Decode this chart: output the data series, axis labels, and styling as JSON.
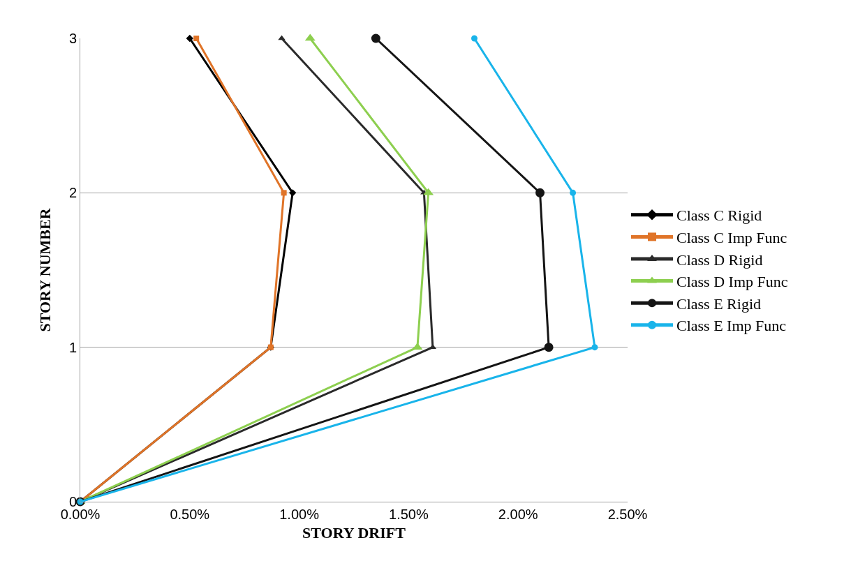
{
  "chart_data": {
    "type": "line",
    "xlabel": "STORY DRIFT",
    "ylabel": "STORY NUMBER",
    "xlim": [
      0,
      2.5
    ],
    "xticks": [
      {
        "value": 0,
        "label": "0.00%"
      },
      {
        "value": 0.5,
        "label": "0.50%"
      },
      {
        "value": 1,
        "label": "1.00%"
      },
      {
        "value": 1.5,
        "label": "1.50%"
      },
      {
        "value": 2,
        "label": "2.00%"
      },
      {
        "value": 2.5,
        "label": "2.50%"
      }
    ],
    "ylim": [
      0,
      3
    ],
    "yticks": [
      0,
      1,
      2,
      3
    ],
    "grid": "y",
    "legend": "right",
    "line_style": "solid",
    "series": [
      {
        "name": "Class C Rigid",
        "color": "#000000",
        "marker": "diamond",
        "x": [
          0,
          0.87,
          0.97,
          0.5
        ],
        "values": [
          0,
          1,
          2,
          3
        ]
      },
      {
        "name": "Class C Imp Func",
        "color": "#e07428",
        "marker": "square",
        "x": [
          0,
          0.87,
          0.93,
          0.53
        ],
        "values": [
          0,
          1,
          2,
          3
        ]
      },
      {
        "name": "Class D Rigid",
        "color": "#2a2a2a",
        "marker": "triangle",
        "x": [
          0,
          1.61,
          1.57,
          0.92
        ],
        "values": [
          0,
          1,
          2,
          3
        ]
      },
      {
        "name": "Class D Imp Func",
        "color": "#8dcf4f",
        "marker": "triangle",
        "x": [
          0,
          1.54,
          1.59,
          1.05
        ],
        "values": [
          0,
          1,
          2,
          3
        ]
      },
      {
        "name": "Class E Rigid",
        "color": "#151515",
        "marker": "circle",
        "x": [
          0,
          2.14,
          2.1,
          1.35
        ],
        "values": [
          0,
          1,
          2,
          3
        ]
      },
      {
        "name": "Class E Imp Func",
        "color": "#19b4ea",
        "marker": "circle",
        "x": [
          0,
          2.35,
          2.25,
          1.8
        ],
        "values": [
          0,
          1,
          2,
          3
        ]
      }
    ]
  }
}
